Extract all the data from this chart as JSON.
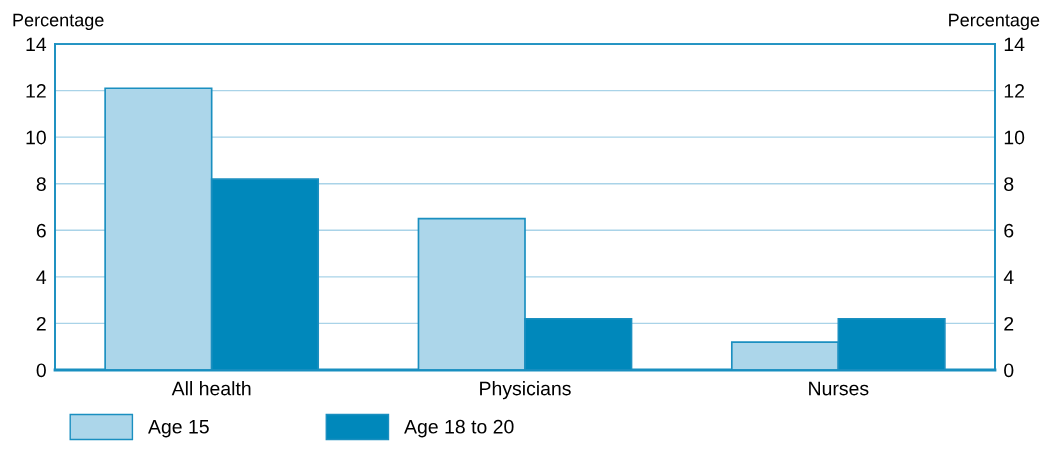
{
  "chart_data": {
    "type": "bar",
    "ylabel": "Percentage",
    "y2label": "Percentage",
    "categories": [
      "All health",
      "Physicians",
      "Nurses"
    ],
    "series": [
      {
        "name": "Age 15",
        "color": "#acd6ea",
        "values": [
          12.1,
          6.5,
          1.2
        ]
      },
      {
        "name": "Age 18 to 20",
        "color": "#0088bb",
        "values": [
          8.2,
          2.2,
          2.2
        ]
      }
    ],
    "ylim": [
      0,
      14
    ],
    "yticks": [
      0,
      2,
      4,
      6,
      8,
      10,
      12,
      14
    ],
    "y2lim": [
      0,
      14
    ],
    "y2ticks": [
      0,
      2,
      4,
      6,
      8,
      10,
      12,
      14
    ],
    "grid": "y",
    "legend": "bottom left"
  }
}
